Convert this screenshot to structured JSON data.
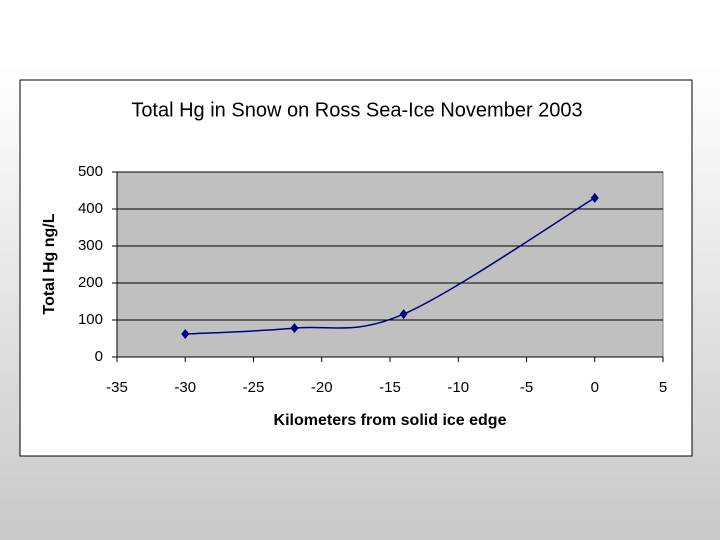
{
  "chart_data": {
    "type": "line",
    "title": "Total Hg in Snow on Ross Sea-Ice November 2003",
    "x_label": "Kilometers from solid ice edge",
    "y_label": "Total Hg  ng/L",
    "x": [
      -30,
      -22,
      -14,
      0
    ],
    "series": [
      {
        "name": "Total Hg",
        "color": "#000080",
        "values": [
          62,
          78,
          116,
          430
        ]
      }
    ],
    "xlim": [
      -35,
      5
    ],
    "xticks": [
      -35,
      -30,
      -25,
      -20,
      -15,
      -10,
      -5,
      0,
      5
    ],
    "ylim": [
      0,
      500
    ],
    "yticks": [
      0,
      100,
      200,
      300,
      400,
      500
    ],
    "grid": true
  }
}
